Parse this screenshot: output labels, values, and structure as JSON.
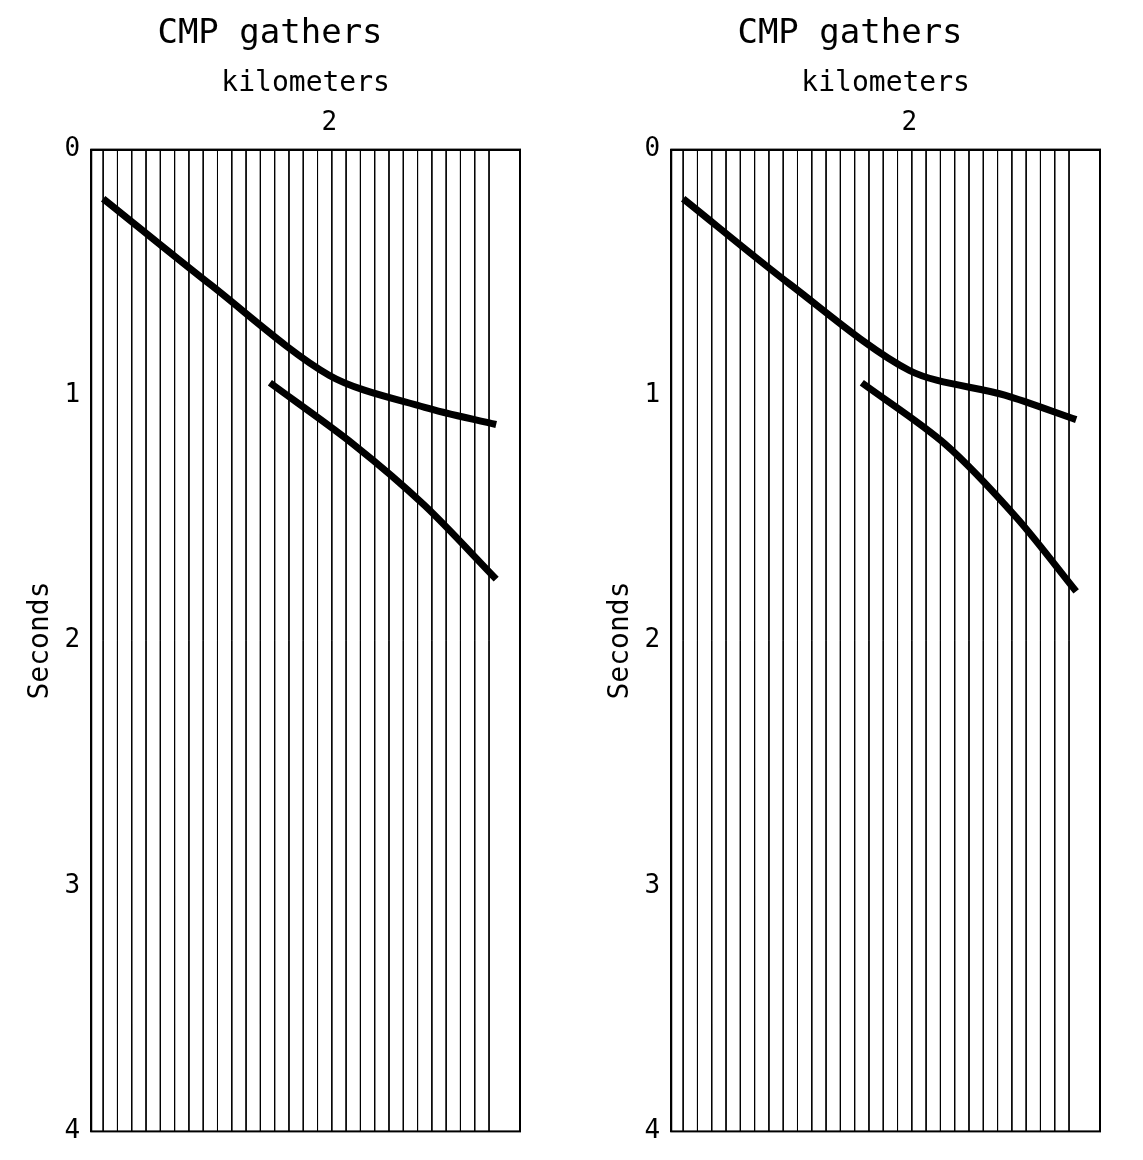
{
  "chart_data": [
    {
      "type": "line",
      "title": "CMP gathers",
      "x_label": "kilometers",
      "y_label": "Seconds",
      "xlim": [
        0,
        3.6
      ],
      "xticks": [
        2
      ],
      "ylim": [
        0,
        4
      ],
      "yticks": [
        0,
        1,
        2,
        3,
        4
      ],
      "grid": false,
      "traces": [
        0.1,
        0.22,
        0.34,
        0.46,
        0.58,
        0.7,
        0.82,
        0.94,
        1.06,
        1.18,
        1.3,
        1.42,
        1.54,
        1.66,
        1.78,
        1.9,
        2.02,
        2.14,
        2.26,
        2.38,
        2.5,
        2.62,
        2.74,
        2.86,
        2.98,
        3.1,
        3.22,
        3.34
      ],
      "series": [
        {
          "color": "#000000",
          "line_style": "solid",
          "x": [
            0.1,
            1.0,
            2.0,
            2.8,
            3.4
          ],
          "values": [
            0.2,
            0.55,
            0.92,
            1.05,
            1.12
          ]
        },
        {
          "color": "#000000",
          "line_style": "solid",
          "x": [
            1.5,
            2.2,
            2.8,
            3.4
          ],
          "values": [
            0.95,
            1.2,
            1.45,
            1.75
          ]
        }
      ]
    },
    {
      "type": "line",
      "title": "CMP gathers",
      "x_label": "kilometers",
      "y_label": "Seconds",
      "xlim": [
        0,
        3.6
      ],
      "xticks": [
        2
      ],
      "ylim": [
        0,
        4
      ],
      "yticks": [
        0,
        1,
        2,
        3,
        4
      ],
      "grid": false,
      "traces": [
        0.1,
        0.22,
        0.34,
        0.46,
        0.58,
        0.7,
        0.82,
        0.94,
        1.06,
        1.18,
        1.3,
        1.42,
        1.54,
        1.66,
        1.78,
        1.9,
        2.02,
        2.14,
        2.26,
        2.38,
        2.5,
        2.62,
        2.74,
        2.86,
        2.98,
        3.1,
        3.22,
        3.34
      ],
      "series": [
        {
          "color": "#000000",
          "line_style": "solid",
          "x": [
            0.1,
            1.0,
            2.0,
            2.8,
            3.4
          ],
          "values": [
            0.2,
            0.55,
            0.9,
            1.0,
            1.1
          ]
        },
        {
          "color": "#000000",
          "line_style": "solid",
          "x": [
            1.6,
            2.3,
            2.9,
            3.4
          ],
          "values": [
            0.95,
            1.2,
            1.5,
            1.8
          ]
        }
      ]
    }
  ]
}
